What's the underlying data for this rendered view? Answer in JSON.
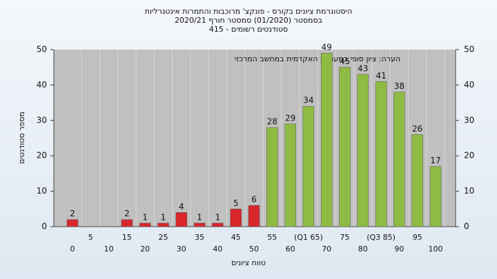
{
  "chart_data": {
    "type": "bar",
    "title": "היסטוגרמת ציונים בקורס - פונקצ' מרוכבות והתמרות אינטגרליות",
    "subtitle": "בסמסטר  (01/2020)  סמסטר חורף 2020/21",
    "subtitle2": "סטודנטים רשומים - 415",
    "annotation": "הערה: ציון סופי במערכת האקדמית במחשב המרכזי",
    "x_label": "טווח ציונים",
    "y_label": "מספר סטודנטים",
    "categories": [
      "0",
      "5",
      "10",
      "15",
      "20",
      "25",
      "30",
      "35",
      "40",
      "45",
      "50",
      "55",
      "60",
      "(Q1 65)",
      "70",
      "75",
      "80",
      "(Q3 85)",
      "90",
      "95",
      "100"
    ],
    "values": [
      2,
      0,
      0,
      2,
      1,
      1,
      4,
      1,
      1,
      5,
      6,
      28,
      29,
      34,
      49,
      45,
      43,
      41,
      38,
      26,
      17
    ],
    "colors": [
      "#d8262b",
      "#d8262b",
      "#d8262b",
      "#d8262b",
      "#d8262b",
      "#d8262b",
      "#d8262b",
      "#d8262b",
      "#d8262b",
      "#d8262b",
      "#d8262b",
      "#8fbb45",
      "#8fbb45",
      "#8fbb45",
      "#8fbb45",
      "#8fbb45",
      "#8fbb45",
      "#8fbb45",
      "#8fbb45",
      "#8fbb45",
      "#8fbb45"
    ],
    "ylim": [
      0,
      50
    ],
    "yticks": [
      0,
      10,
      20,
      30,
      40,
      50
    ],
    "grid": true
  }
}
